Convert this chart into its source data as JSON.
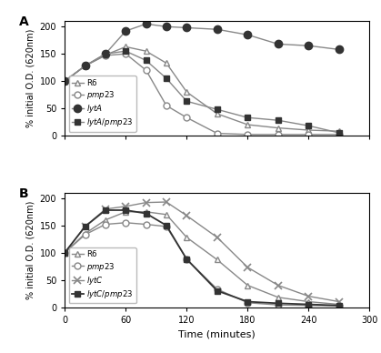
{
  "panel_A": {
    "R6": {
      "x": [
        0,
        20,
        40,
        60,
        80,
        100,
        120,
        150,
        180,
        210,
        240,
        270
      ],
      "y": [
        100,
        128,
        148,
        163,
        155,
        133,
        80,
        40,
        20,
        14,
        10,
        8
      ]
    },
    "pmp23": {
      "x": [
        0,
        20,
        40,
        60,
        80,
        100,
        120,
        150,
        180,
        210,
        240,
        270
      ],
      "y": [
        100,
        128,
        147,
        150,
        120,
        55,
        33,
        4,
        2,
        2,
        2,
        2
      ]
    },
    "lytA": {
      "x": [
        0,
        20,
        40,
        60,
        80,
        100,
        120,
        150,
        180,
        210,
        240,
        270
      ],
      "y": [
        100,
        128,
        150,
        192,
        205,
        200,
        198,
        195,
        185,
        168,
        165,
        158
      ]
    },
    "lytApmp23": {
      "x": [
        0,
        20,
        40,
        60,
        80,
        100,
        120,
        150,
        180,
        210,
        240,
        270
      ],
      "y": [
        100,
        128,
        150,
        155,
        138,
        105,
        63,
        48,
        33,
        28,
        18,
        5
      ]
    }
  },
  "panel_B": {
    "R6": {
      "x": [
        0,
        20,
        40,
        60,
        80,
        100,
        120,
        150,
        180,
        210,
        240,
        270
      ],
      "y": [
        100,
        135,
        160,
        175,
        175,
        170,
        128,
        87,
        40,
        18,
        10,
        5
      ]
    },
    "pmp23": {
      "x": [
        0,
        20,
        40,
        60,
        80,
        100,
        120,
        150,
        180,
        210,
        240,
        270
      ],
      "y": [
        100,
        133,
        152,
        155,
        152,
        148,
        88,
        33,
        8,
        4,
        3,
        2
      ]
    },
    "lytC": {
      "x": [
        0,
        20,
        40,
        60,
        80,
        100,
        120,
        150,
        180,
        210,
        240,
        270
      ],
      "y": [
        100,
        148,
        180,
        185,
        192,
        193,
        168,
        128,
        73,
        40,
        20,
        10
      ]
    },
    "lytCpmp23": {
      "x": [
        0,
        20,
        40,
        60,
        80,
        100,
        120,
        150,
        180,
        210,
        240,
        270
      ],
      "y": [
        100,
        148,
        178,
        178,
        172,
        150,
        88,
        30,
        10,
        7,
        5,
        3
      ]
    }
  },
  "xlim": [
    0,
    300
  ],
  "ylim": [
    0,
    210
  ],
  "xticks": [
    0,
    60,
    120,
    180,
    240,
    300
  ],
  "yticks": [
    0,
    50,
    100,
    150,
    200
  ],
  "xlabel": "Time (minutes)",
  "ylabel": "% initial O.D. (620nm)",
  "line_color": "#888888",
  "dark_color": "#333333"
}
